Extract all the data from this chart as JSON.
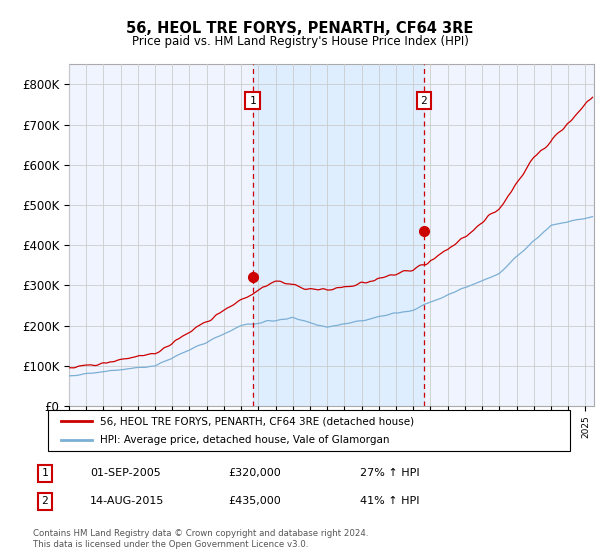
{
  "title": "56, HEOL TRE FORYS, PENARTH, CF64 3RE",
  "subtitle": "Price paid vs. HM Land Registry's House Price Index (HPI)",
  "legend_line1": "56, HEOL TRE FORYS, PENARTH, CF64 3RE (detached house)",
  "legend_line2": "HPI: Average price, detached house, Vale of Glamorgan",
  "annotation1_date": "01-SEP-2005",
  "annotation1_price": "£320,000",
  "annotation1_hpi": "27% ↑ HPI",
  "annotation2_date": "14-AUG-2015",
  "annotation2_price": "£435,000",
  "annotation2_hpi": "41% ↑ HPI",
  "footer": "Contains HM Land Registry data © Crown copyright and database right 2024.\nThis data is licensed under the Open Government Licence v3.0.",
  "red_color": "#cc0000",
  "blue_color": "#7bafd4",
  "fill_color": "#ddeeff",
  "bg_color": "#f0f4ff",
  "ylim": [
    0,
    850000
  ],
  "yticks": [
    0,
    100000,
    200000,
    300000,
    400000,
    500000,
    600000,
    700000,
    800000
  ],
  "ytick_labels": [
    "£0",
    "£100K",
    "£200K",
    "£300K",
    "£400K",
    "£500K",
    "£600K",
    "£700K",
    "£800K"
  ],
  "vline1_x": 2005.667,
  "vline2_x": 2015.617,
  "sale1_x": 2005.667,
  "sale1_y": 320000,
  "sale2_x": 2015.617,
  "sale2_y": 435000,
  "xlim_left": 1995.0,
  "xlim_right": 2025.5
}
